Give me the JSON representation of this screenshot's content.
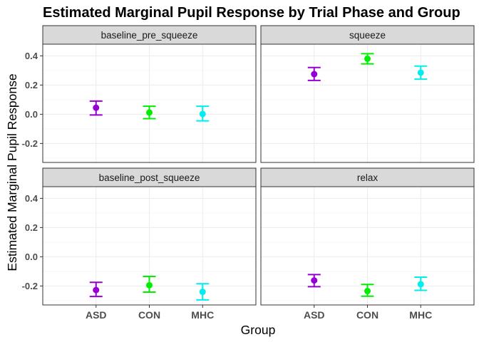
{
  "chart_data": {
    "type": "scatter",
    "subtype": "point-with-errorbars, faceted 2x2",
    "title": "Estimated Marginal Pupil Response by Trial Phase and Group",
    "xlabel": "Group",
    "ylabel": "Estimated Marginal Pupil Response",
    "categories": [
      "ASD",
      "CON",
      "MHC"
    ],
    "colors": {
      "ASD": "#9400d3",
      "CON": "#00ee00",
      "MHC": "#00eeee"
    },
    "ylim": [
      -0.33,
      0.48
    ],
    "yticks": [
      -0.2,
      0.0,
      0.2,
      0.4
    ],
    "ytick_labels": [
      "-0.2",
      "0.0",
      "0.2",
      "0.4"
    ],
    "grid": true,
    "legend": "none",
    "facets": [
      {
        "label": "baseline_pre_squeeze",
        "row": 0,
        "col": 0,
        "points": [
          {
            "group": "ASD",
            "y": 0.045,
            "lower": -0.005,
            "upper": 0.09
          },
          {
            "group": "CON",
            "y": 0.012,
            "lower": -0.03,
            "upper": 0.055
          },
          {
            "group": "MHC",
            "y": 0.002,
            "lower": -0.045,
            "upper": 0.055
          }
        ]
      },
      {
        "label": "squeeze",
        "row": 0,
        "col": 1,
        "points": [
          {
            "group": "ASD",
            "y": 0.275,
            "lower": 0.232,
            "upper": 0.32
          },
          {
            "group": "CON",
            "y": 0.38,
            "lower": 0.345,
            "upper": 0.415
          },
          {
            "group": "MHC",
            "y": 0.285,
            "lower": 0.24,
            "upper": 0.33
          }
        ]
      },
      {
        "label": "baseline_post_squeeze",
        "row": 1,
        "col": 0,
        "points": [
          {
            "group": "ASD",
            "y": -0.228,
            "lower": -0.272,
            "upper": -0.175
          },
          {
            "group": "CON",
            "y": -0.195,
            "lower": -0.242,
            "upper": -0.135
          },
          {
            "group": "MHC",
            "y": -0.24,
            "lower": -0.295,
            "upper": -0.185
          }
        ]
      },
      {
        "label": "relax",
        "row": 1,
        "col": 1,
        "points": [
          {
            "group": "ASD",
            "y": -0.162,
            "lower": -0.205,
            "upper": -0.122
          },
          {
            "group": "CON",
            "y": -0.235,
            "lower": -0.27,
            "upper": -0.19
          },
          {
            "group": "MHC",
            "y": -0.188,
            "lower": -0.23,
            "upper": -0.14
          }
        ]
      }
    ]
  }
}
